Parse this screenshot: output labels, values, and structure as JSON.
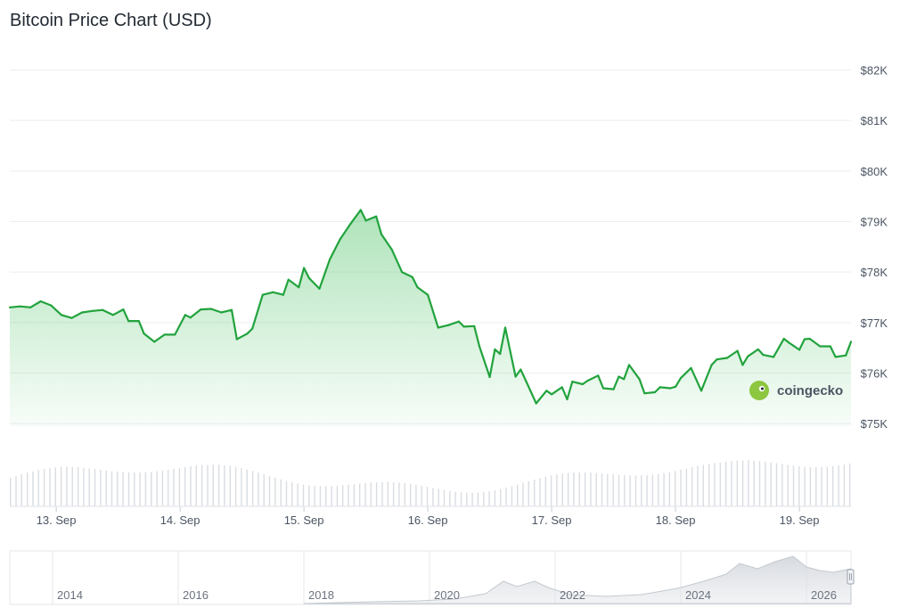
{
  "title": "Bitcoin Price Chart (USD)",
  "watermark": "coingecko",
  "colors": {
    "line": "#22a33d",
    "fill": "#4cc265",
    "grid": "#eceef1",
    "volume": "#d9dde2",
    "navigator": "#e5e7eb"
  },
  "chart_data": {
    "type": "area",
    "title": "Bitcoin Price Chart (USD)",
    "x_start": "2024-09-12T15:00",
    "x_end": "2024-09-19T10:00",
    "y_unit": "USD",
    "ylim": [
      74950,
      82150
    ],
    "y_ticks": [
      {
        "value": 75000,
        "label": "$75K"
      },
      {
        "value": 76000,
        "label": "$76K"
      },
      {
        "value": 77000,
        "label": "$77K"
      },
      {
        "value": 78000,
        "label": "$78K"
      },
      {
        "value": 79000,
        "label": "$79K"
      },
      {
        "value": 80000,
        "label": "$80K"
      },
      {
        "value": 81000,
        "label": "$81K"
      },
      {
        "value": 82000,
        "label": "$82K"
      }
    ],
    "x_ticks": [
      {
        "value": "2024-09-13T00:00",
        "label": "13. Sep"
      },
      {
        "value": "2024-09-14T00:00",
        "label": "14. Sep"
      },
      {
        "value": "2024-09-15T00:00",
        "label": "15. Sep"
      },
      {
        "value": "2024-09-16T00:00",
        "label": "16. Sep"
      },
      {
        "value": "2024-09-17T00:00",
        "label": "17. Sep"
      },
      {
        "value": "2024-09-18T00:00",
        "label": "18. Sep"
      },
      {
        "value": "2024-09-19T00:00",
        "label": "19. Sep"
      }
    ],
    "grid": true,
    "legend": "none",
    "series": [
      {
        "points": [
          [
            "2024-09-12T15:00",
            77300
          ],
          [
            "2024-09-12T17:00",
            77320
          ],
          [
            "2024-09-12T19:00",
            77300
          ],
          [
            "2024-09-12T21:00",
            77420
          ],
          [
            "2024-09-12T23:00",
            77340
          ],
          [
            "2024-09-13T01:00",
            77150
          ],
          [
            "2024-09-13T03:00",
            77090
          ],
          [
            "2024-09-13T05:00",
            77200
          ],
          [
            "2024-09-13T07:00",
            77230
          ],
          [
            "2024-09-13T09:00",
            77250
          ],
          [
            "2024-09-13T11:00",
            77150
          ],
          [
            "2024-09-13T13:00",
            77260
          ],
          [
            "2024-09-13T14:00",
            77030
          ],
          [
            "2024-09-13T16:00",
            77030
          ],
          [
            "2024-09-13T17:00",
            76780
          ],
          [
            "2024-09-13T19:00",
            76620
          ],
          [
            "2024-09-13T21:00",
            76760
          ],
          [
            "2024-09-13T23:00",
            76760
          ],
          [
            "2024-09-14T01:00",
            77150
          ],
          [
            "2024-09-14T02:00",
            77100
          ],
          [
            "2024-09-14T04:00",
            77260
          ],
          [
            "2024-09-14T06:00",
            77270
          ],
          [
            "2024-09-14T08:00",
            77200
          ],
          [
            "2024-09-14T10:00",
            77250
          ],
          [
            "2024-09-14T11:00",
            76670
          ],
          [
            "2024-09-14T13:00",
            76780
          ],
          [
            "2024-09-14T14:00",
            76880
          ],
          [
            "2024-09-14T16:00",
            77550
          ],
          [
            "2024-09-14T18:00",
            77600
          ],
          [
            "2024-09-14T20:00",
            77550
          ],
          [
            "2024-09-14T21:00",
            77850
          ],
          [
            "2024-09-14T23:00",
            77700
          ],
          [
            "2024-09-15T00:00",
            78080
          ],
          [
            "2024-09-15T01:00",
            77880
          ],
          [
            "2024-09-15T03:00",
            77670
          ],
          [
            "2024-09-15T05:00",
            78250
          ],
          [
            "2024-09-15T07:00",
            78650
          ],
          [
            "2024-09-15T09:00",
            78950
          ],
          [
            "2024-09-15T11:00",
            79230
          ],
          [
            "2024-09-15T12:00",
            79020
          ],
          [
            "2024-09-15T14:00",
            79100
          ],
          [
            "2024-09-15T15:00",
            78750
          ],
          [
            "2024-09-15T17:00",
            78450
          ],
          [
            "2024-09-15T19:00",
            78000
          ],
          [
            "2024-09-15T21:00",
            77900
          ],
          [
            "2024-09-15T22:00",
            77700
          ],
          [
            "2024-09-16T00:00",
            77550
          ],
          [
            "2024-09-16T02:00",
            76900
          ],
          [
            "2024-09-16T04:00",
            76950
          ],
          [
            "2024-09-16T06:00",
            77020
          ],
          [
            "2024-09-16T07:00",
            76920
          ],
          [
            "2024-09-16T09:00",
            76930
          ],
          [
            "2024-09-16T10:00",
            76530
          ],
          [
            "2024-09-16T12:00",
            75920
          ],
          [
            "2024-09-16T13:00",
            76470
          ],
          [
            "2024-09-16T14:00",
            76380
          ],
          [
            "2024-09-16T15:00",
            76900
          ],
          [
            "2024-09-16T17:00",
            75930
          ],
          [
            "2024-09-16T18:00",
            76070
          ],
          [
            "2024-09-16T19:00",
            75850
          ],
          [
            "2024-09-16T21:00",
            75400
          ],
          [
            "2024-09-16T23:00",
            75650
          ],
          [
            "2024-09-17T00:00",
            75580
          ],
          [
            "2024-09-17T02:00",
            75720
          ],
          [
            "2024-09-17T03:00",
            75480
          ],
          [
            "2024-09-17T04:00",
            75830
          ],
          [
            "2024-09-17T06:00",
            75780
          ],
          [
            "2024-09-17T07:00",
            75850
          ],
          [
            "2024-09-17T09:00",
            75950
          ],
          [
            "2024-09-17T10:00",
            75700
          ],
          [
            "2024-09-17T12:00",
            75680
          ],
          [
            "2024-09-17T13:00",
            75930
          ],
          [
            "2024-09-17T14:00",
            75880
          ],
          [
            "2024-09-17T15:00",
            76160
          ],
          [
            "2024-09-17T17:00",
            75880
          ],
          [
            "2024-09-17T18:00",
            75600
          ],
          [
            "2024-09-17T20:00",
            75620
          ],
          [
            "2024-09-17T21:00",
            75720
          ],
          [
            "2024-09-17T23:00",
            75700
          ],
          [
            "2024-09-18T00:00",
            75730
          ],
          [
            "2024-09-18T01:00",
            75900
          ],
          [
            "2024-09-18T03:00",
            76100
          ],
          [
            "2024-09-18T05:00",
            75650
          ],
          [
            "2024-09-18T07:00",
            76160
          ],
          [
            "2024-09-18T08:00",
            76270
          ],
          [
            "2024-09-18T10:00",
            76300
          ],
          [
            "2024-09-18T12:00",
            76440
          ],
          [
            "2024-09-18T13:00",
            76160
          ],
          [
            "2024-09-18T14:00",
            76330
          ],
          [
            "2024-09-18T16:00",
            76470
          ],
          [
            "2024-09-18T17:00",
            76360
          ],
          [
            "2024-09-18T19:00",
            76320
          ],
          [
            "2024-09-18T21:00",
            76680
          ],
          [
            "2024-09-18T22:00",
            76600
          ],
          [
            "2024-09-19T00:00",
            76460
          ],
          [
            "2024-09-19T01:00",
            76670
          ],
          [
            "2024-09-19T02:00",
            76680
          ],
          [
            "2024-09-19T04:00",
            76530
          ],
          [
            "2024-09-19T06:00",
            76530
          ],
          [
            "2024-09-19T07:00",
            76320
          ],
          [
            "2024-09-19T09:00",
            76350
          ],
          [
            "2024-09-19T10:00",
            76620
          ]
        ]
      }
    ]
  },
  "navigator": {
    "ticks": [
      "2014",
      "2016",
      "2018",
      "2020",
      "2022",
      "2024",
      "2026"
    ]
  }
}
